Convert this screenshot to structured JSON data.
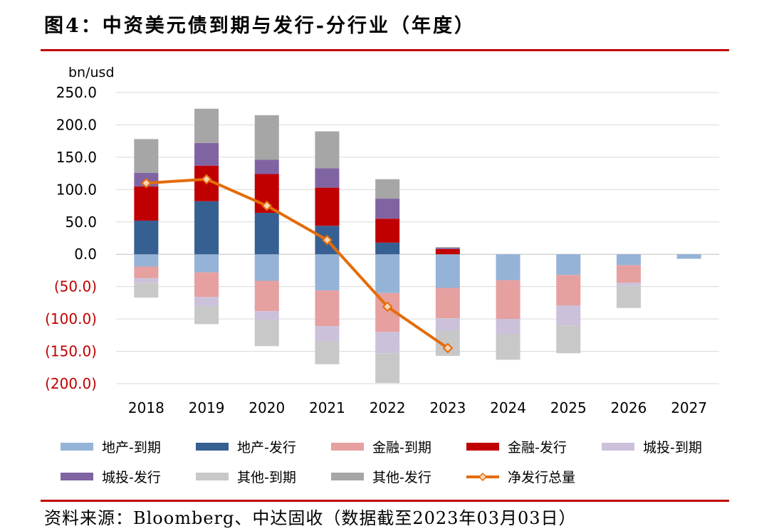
{
  "header": {
    "title": "图4：中资美元债到期与发行-分行业（年度）"
  },
  "footer": {
    "source": "资料来源：Bloomberg、中达固收（数据截至2023年03月03日）"
  },
  "chart_data": {
    "type": "bar",
    "subtype": "stacked-bar-with-line",
    "title": "图4：中资美元债到期与发行-分行业（年度）",
    "ylabel": "bn/usd",
    "xlabel": "",
    "ylim": [
      -200,
      250
    ],
    "yticks": [
      250,
      200,
      150,
      100,
      50,
      0,
      -50,
      -100,
      -150,
      -200
    ],
    "ytick_labels": [
      "250.0",
      "200.0",
      "150.0",
      "100.0",
      "50.0",
      "0.0",
      "(50.0)",
      "(100.0)",
      "(150.0)",
      "(200.0)"
    ],
    "negative_label_color": "#c00000",
    "grid": true,
    "legend_position": "bottom",
    "categories": [
      "2018",
      "2019",
      "2020",
      "2021",
      "2022",
      "2023",
      "2024",
      "2025",
      "2026",
      "2027"
    ],
    "series": [
      {
        "name": "地产-到期",
        "kind": "bar",
        "sign": "negative",
        "color": "#95b3d7",
        "values": [
          -19,
          -28,
          -41,
          -56,
          -60,
          -52,
          -40,
          -32,
          -17,
          -7
        ]
      },
      {
        "name": "地产-发行",
        "kind": "bar",
        "sign": "positive",
        "color": "#376092",
        "values": [
          52,
          82,
          64,
          44,
          18,
          0,
          0,
          0,
          0,
          0
        ]
      },
      {
        "name": "金融-到期",
        "kind": "bar",
        "sign": "negative",
        "color": "#e6a0a0",
        "values": [
          -18,
          -38,
          -47,
          -55,
          -60,
          -47,
          -60,
          -47,
          -27,
          0
        ]
      },
      {
        "name": "金融-发行",
        "kind": "bar",
        "sign": "positive",
        "color": "#c00000",
        "values": [
          53,
          55,
          60,
          59,
          37,
          8,
          0,
          0,
          0,
          0
        ]
      },
      {
        "name": "城投-到期",
        "kind": "bar",
        "sign": "negative",
        "color": "#ccc1da",
        "values": [
          -7,
          -14,
          -13,
          -24,
          -33,
          -19,
          -23,
          -31,
          -5,
          0
        ]
      },
      {
        "name": "城投-发行",
        "kind": "bar",
        "sign": "positive",
        "color": "#8064a2",
        "values": [
          21,
          35,
          22,
          30,
          31,
          2,
          0,
          0,
          0,
          0
        ]
      },
      {
        "name": "其他-到期",
        "kind": "bar",
        "sign": "negative",
        "color": "#c8c8c8",
        "values": [
          -23,
          -28,
          -41,
          -35,
          -46,
          -39,
          -40,
          -43,
          -34,
          0
        ]
      },
      {
        "name": "其他-发行",
        "kind": "bar",
        "sign": "positive",
        "color": "#a6a6a6",
        "values": [
          52,
          53,
          69,
          57,
          30,
          1,
          0,
          0,
          0,
          0
        ]
      },
      {
        "name": "净发行总量",
        "kind": "line",
        "color": "#e46c0a",
        "marker": "diamond",
        "values": [
          110,
          116,
          75,
          22,
          -81,
          -145,
          null,
          null,
          null,
          null
        ]
      }
    ]
  }
}
